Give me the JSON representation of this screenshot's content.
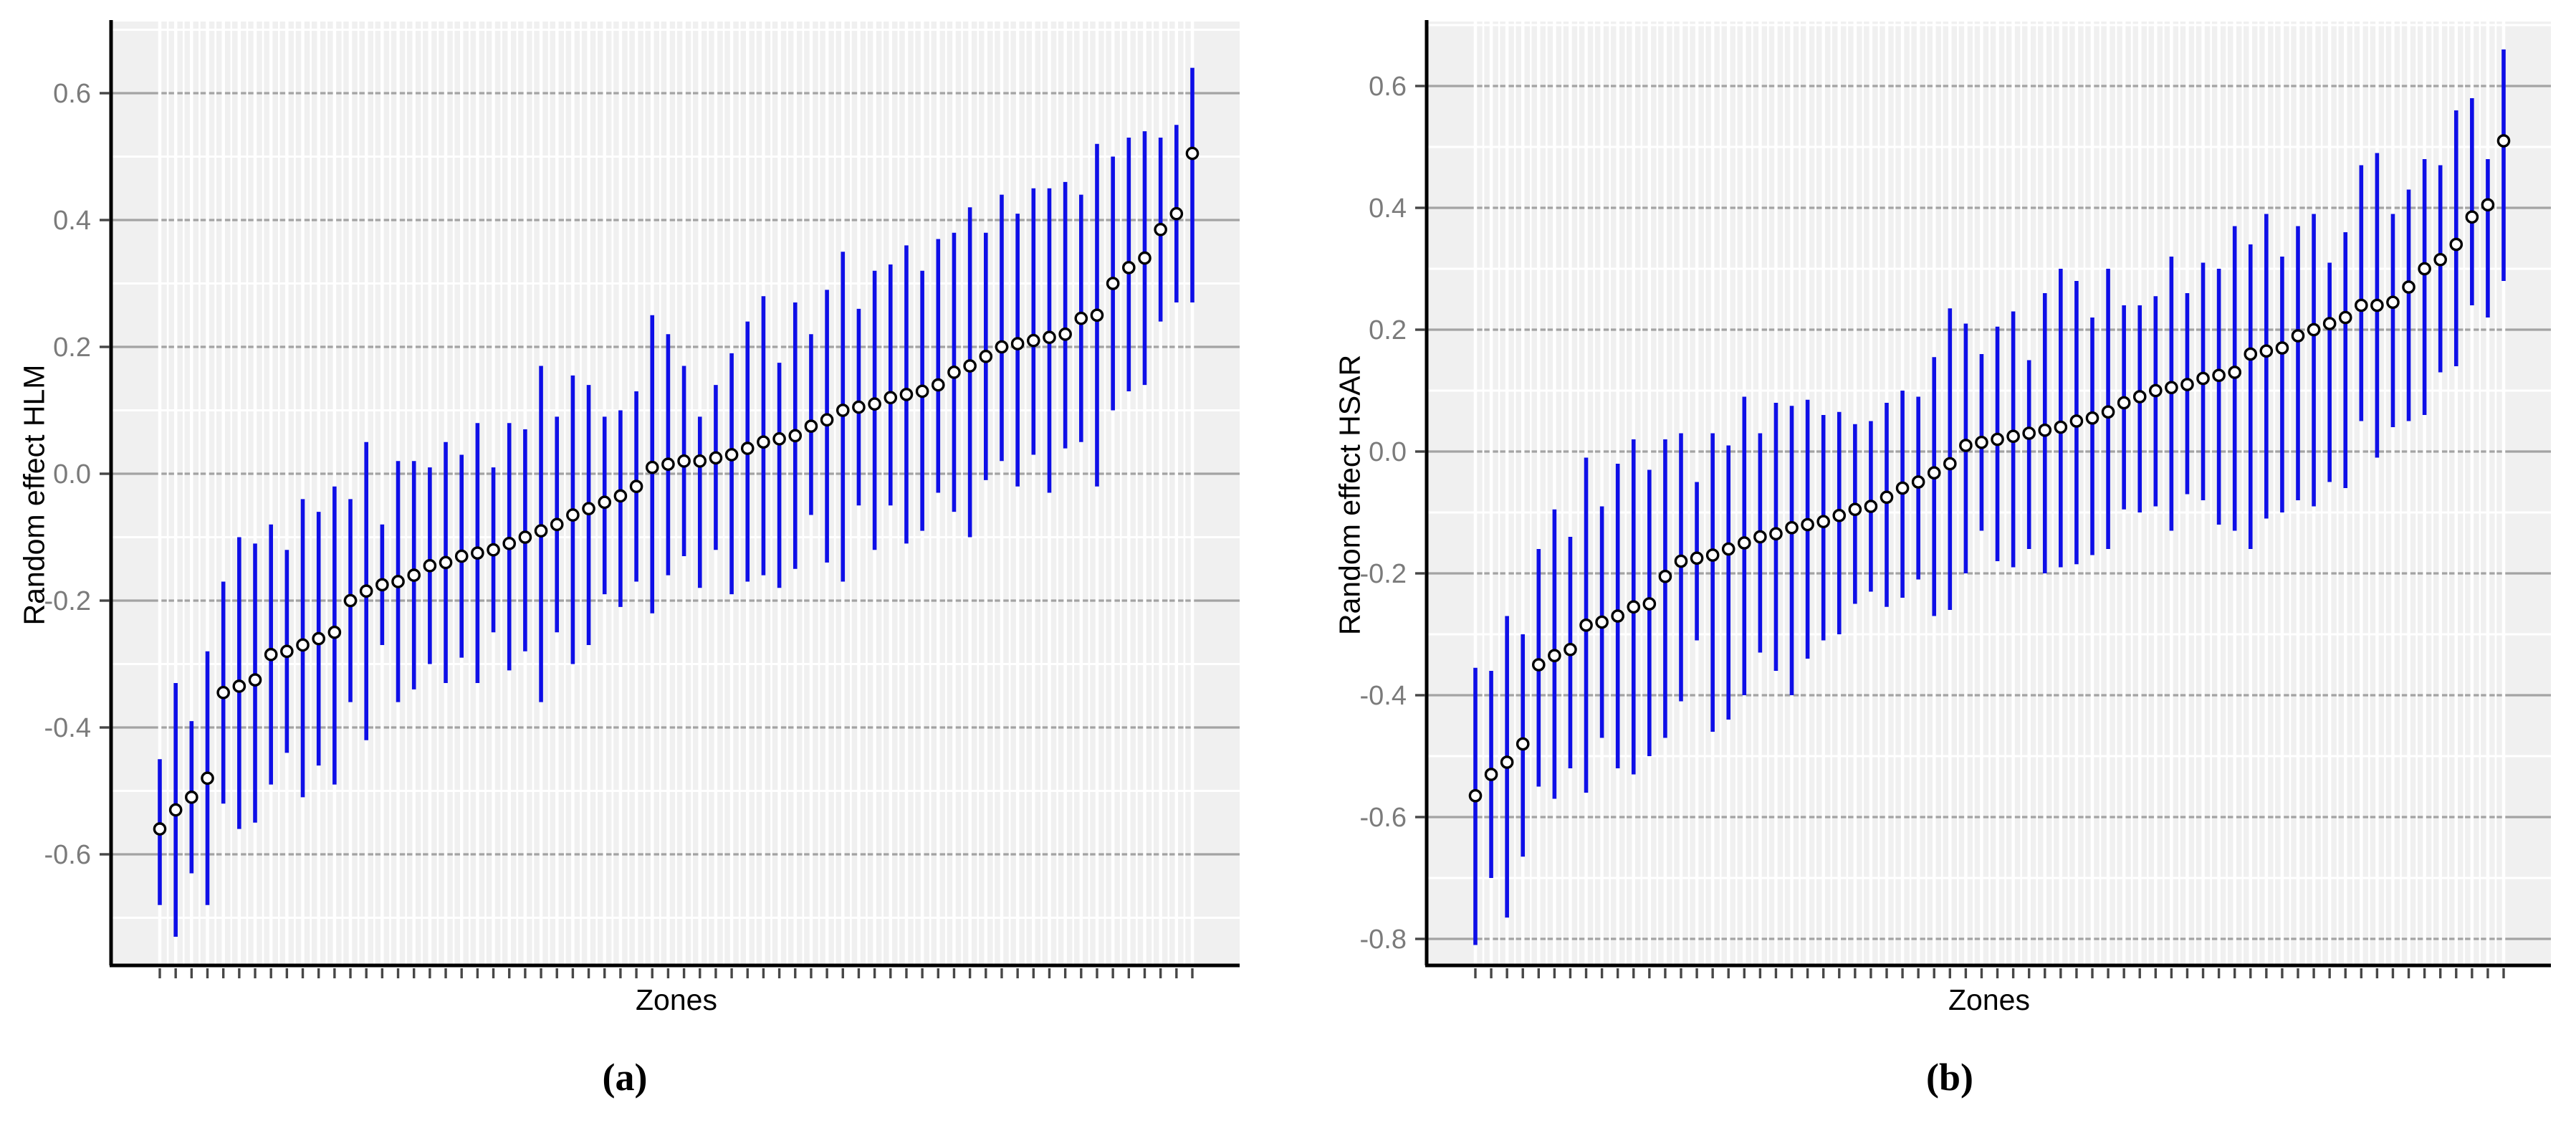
{
  "page": {
    "background": "#ffffff"
  },
  "colors": {
    "panel_bg": "#F0F0F0",
    "grid_major": "#A3A3A3",
    "grid_minor": "#FFFFFF",
    "error_bar": "#0E0EE7",
    "point_fill": "#FFFFFF",
    "point_stroke": "#000000",
    "axis_line": "#000000",
    "tick_mark": "#474747",
    "tick_label": "#7B7B7B"
  },
  "chart_data": [
    {
      "type": "errorbar",
      "panel": "a",
      "caption": "(a)",
      "xlabel": "Zones",
      "ylabel": "Random effect HLM",
      "x_axis": "66 unlabeled zone ticks, sorted by effect size",
      "ytick_labels": [
        "0.6",
        "0.4",
        "0.2",
        "0.0",
        "-0.2",
        "-0.4",
        "-0.6"
      ],
      "ytick_values": [
        0.6,
        0.4,
        0.2,
        0.0,
        -0.2,
        -0.4,
        -0.6
      ],
      "ylim": [
        -0.77,
        0.7
      ],
      "grid": "major gray horizontal, minor white horizontal, white vertical stripes",
      "legend": "none",
      "n_zones": 66,
      "points_format": [
        "estimate",
        "ci_lower",
        "ci_upper"
      ],
      "points": [
        [
          -0.56,
          -0.68,
          -0.45
        ],
        [
          -0.53,
          -0.73,
          -0.33
        ],
        [
          -0.51,
          -0.63,
          -0.39
        ],
        [
          -0.48,
          -0.68,
          -0.28
        ],
        [
          -0.345,
          -0.52,
          -0.17
        ],
        [
          -0.335,
          -0.56,
          -0.1
        ],
        [
          -0.325,
          -0.55,
          -0.11
        ],
        [
          -0.285,
          -0.49,
          -0.08
        ],
        [
          -0.28,
          -0.44,
          -0.12
        ],
        [
          -0.27,
          -0.51,
          -0.04
        ],
        [
          -0.26,
          -0.46,
          -0.06
        ],
        [
          -0.25,
          -0.49,
          -0.02
        ],
        [
          -0.2,
          -0.36,
          -0.04
        ],
        [
          -0.185,
          -0.42,
          0.05
        ],
        [
          -0.175,
          -0.27,
          -0.08
        ],
        [
          -0.17,
          -0.36,
          0.02
        ],
        [
          -0.16,
          -0.34,
          0.02
        ],
        [
          -0.145,
          -0.3,
          0.01
        ],
        [
          -0.14,
          -0.33,
          0.05
        ],
        [
          -0.13,
          -0.29,
          0.03
        ],
        [
          -0.125,
          -0.33,
          0.08
        ],
        [
          -0.12,
          -0.25,
          0.01
        ],
        [
          -0.11,
          -0.31,
          0.08
        ],
        [
          -0.1,
          -0.28,
          0.07
        ],
        [
          -0.09,
          -0.36,
          0.17
        ],
        [
          -0.08,
          -0.25,
          0.09
        ],
        [
          -0.065,
          -0.3,
          0.155
        ],
        [
          -0.055,
          -0.27,
          0.14
        ],
        [
          -0.045,
          -0.19,
          0.09
        ],
        [
          -0.035,
          -0.21,
          0.1
        ],
        [
          -0.02,
          -0.17,
          0.13
        ],
        [
          0.01,
          -0.22,
          0.25
        ],
        [
          0.015,
          -0.16,
          0.22
        ],
        [
          0.02,
          -0.13,
          0.17
        ],
        [
          0.02,
          -0.18,
          0.09
        ],
        [
          0.025,
          -0.12,
          0.14
        ],
        [
          0.03,
          -0.19,
          0.19
        ],
        [
          0.04,
          -0.17,
          0.24
        ],
        [
          0.05,
          -0.16,
          0.28
        ],
        [
          0.055,
          -0.18,
          0.175
        ],
        [
          0.06,
          -0.15,
          0.27
        ],
        [
          0.075,
          -0.065,
          0.22
        ],
        [
          0.085,
          -0.14,
          0.29
        ],
        [
          0.1,
          -0.17,
          0.35
        ],
        [
          0.105,
          -0.05,
          0.26
        ],
        [
          0.11,
          -0.12,
          0.32
        ],
        [
          0.12,
          -0.05,
          0.33
        ],
        [
          0.125,
          -0.11,
          0.36
        ],
        [
          0.13,
          -0.09,
          0.32
        ],
        [
          0.14,
          -0.03,
          0.37
        ],
        [
          0.16,
          -0.06,
          0.38
        ],
        [
          0.17,
          -0.1,
          0.42
        ],
        [
          0.185,
          -0.01,
          0.38
        ],
        [
          0.2,
          0.02,
          0.44
        ],
        [
          0.205,
          -0.02,
          0.41
        ],
        [
          0.21,
          0.03,
          0.45
        ],
        [
          0.215,
          -0.03,
          0.45
        ],
        [
          0.22,
          0.04,
          0.46
        ],
        [
          0.245,
          0.05,
          0.44
        ],
        [
          0.25,
          -0.02,
          0.52
        ],
        [
          0.3,
          0.1,
          0.5
        ],
        [
          0.325,
          0.13,
          0.53
        ],
        [
          0.34,
          0.14,
          0.54
        ],
        [
          0.385,
          0.24,
          0.53
        ],
        [
          0.41,
          0.27,
          0.55
        ],
        [
          0.505,
          0.27,
          0.64
        ]
      ]
    },
    {
      "type": "errorbar",
      "panel": "b",
      "caption": "(b)",
      "xlabel": "Zones",
      "ylabel": "Random effect HSAR",
      "x_axis": "66 unlabeled zone ticks, sorted by effect size",
      "ytick_labels": [
        "0.6",
        "0.4",
        "0.2",
        "0.0",
        "-0.2",
        "-0.4",
        "-0.6",
        "-0.8"
      ],
      "ytick_values": [
        0.6,
        0.4,
        0.2,
        0.0,
        -0.2,
        -0.4,
        -0.6,
        -0.8
      ],
      "ylim": [
        -0.84,
        0.69
      ],
      "grid": "major gray horizontal, minor white horizontal, white vertical stripes",
      "legend": "none",
      "n_zones": 66,
      "points_format": [
        "estimate",
        "ci_lower",
        "ci_upper"
      ],
      "points": [
        [
          -0.565,
          -0.81,
          -0.355
        ],
        [
          -0.53,
          -0.7,
          -0.36
        ],
        [
          -0.51,
          -0.765,
          -0.27
        ],
        [
          -0.48,
          -0.665,
          -0.3
        ],
        [
          -0.35,
          -0.55,
          -0.16
        ],
        [
          -0.335,
          -0.57,
          -0.095
        ],
        [
          -0.325,
          -0.52,
          -0.14
        ],
        [
          -0.285,
          -0.56,
          -0.01
        ],
        [
          -0.28,
          -0.47,
          -0.09
        ],
        [
          -0.27,
          -0.52,
          -0.02
        ],
        [
          -0.255,
          -0.53,
          0.02
        ],
        [
          -0.25,
          -0.5,
          -0.03
        ],
        [
          -0.205,
          -0.47,
          0.02
        ],
        [
          -0.18,
          -0.41,
          0.03
        ],
        [
          -0.175,
          -0.31,
          -0.05
        ],
        [
          -0.17,
          -0.46,
          0.03
        ],
        [
          -0.16,
          -0.44,
          0.01
        ],
        [
          -0.15,
          -0.4,
          0.09
        ],
        [
          -0.14,
          -0.33,
          0.03
        ],
        [
          -0.135,
          -0.36,
          0.08
        ],
        [
          -0.125,
          -0.4,
          0.075
        ],
        [
          -0.12,
          -0.34,
          0.085
        ],
        [
          -0.115,
          -0.31,
          0.06
        ],
        [
          -0.105,
          -0.3,
          0.065
        ],
        [
          -0.095,
          -0.25,
          0.045
        ],
        [
          -0.09,
          -0.23,
          0.05
        ],
        [
          -0.075,
          -0.255,
          0.08
        ],
        [
          -0.06,
          -0.24,
          0.1
        ],
        [
          -0.05,
          -0.21,
          0.09
        ],
        [
          -0.035,
          -0.27,
          0.155
        ],
        [
          -0.02,
          -0.26,
          0.235
        ],
        [
          0.01,
          -0.2,
          0.21
        ],
        [
          0.015,
          -0.13,
          0.16
        ],
        [
          0.02,
          -0.18,
          0.205
        ],
        [
          0.025,
          -0.19,
          0.23
        ],
        [
          0.03,
          -0.16,
          0.15
        ],
        [
          0.035,
          -0.2,
          0.26
        ],
        [
          0.04,
          -0.19,
          0.3
        ],
        [
          0.05,
          -0.185,
          0.28
        ],
        [
          0.055,
          -0.17,
          0.22
        ],
        [
          0.065,
          -0.16,
          0.3
        ],
        [
          0.08,
          -0.095,
          0.24
        ],
        [
          0.09,
          -0.1,
          0.24
        ],
        [
          0.1,
          -0.09,
          0.255
        ],
        [
          0.105,
          -0.13,
          0.32
        ],
        [
          0.11,
          -0.07,
          0.26
        ],
        [
          0.12,
          -0.08,
          0.31
        ],
        [
          0.125,
          -0.12,
          0.3
        ],
        [
          0.13,
          -0.13,
          0.37
        ],
        [
          0.16,
          -0.16,
          0.34
        ],
        [
          0.165,
          -0.11,
          0.39
        ],
        [
          0.17,
          -0.1,
          0.32
        ],
        [
          0.19,
          -0.08,
          0.37
        ],
        [
          0.2,
          -0.09,
          0.39
        ],
        [
          0.21,
          -0.05,
          0.31
        ],
        [
          0.22,
          -0.06,
          0.36
        ],
        [
          0.24,
          0.05,
          0.47
        ],
        [
          0.24,
          -0.01,
          0.49
        ],
        [
          0.245,
          0.04,
          0.39
        ],
        [
          0.27,
          0.05,
          0.43
        ],
        [
          0.3,
          0.06,
          0.48
        ],
        [
          0.315,
          0.13,
          0.47
        ],
        [
          0.34,
          0.14,
          0.56
        ],
        [
          0.385,
          0.24,
          0.58
        ],
        [
          0.405,
          0.22,
          0.48
        ],
        [
          0.51,
          0.28,
          0.66
        ]
      ]
    }
  ]
}
